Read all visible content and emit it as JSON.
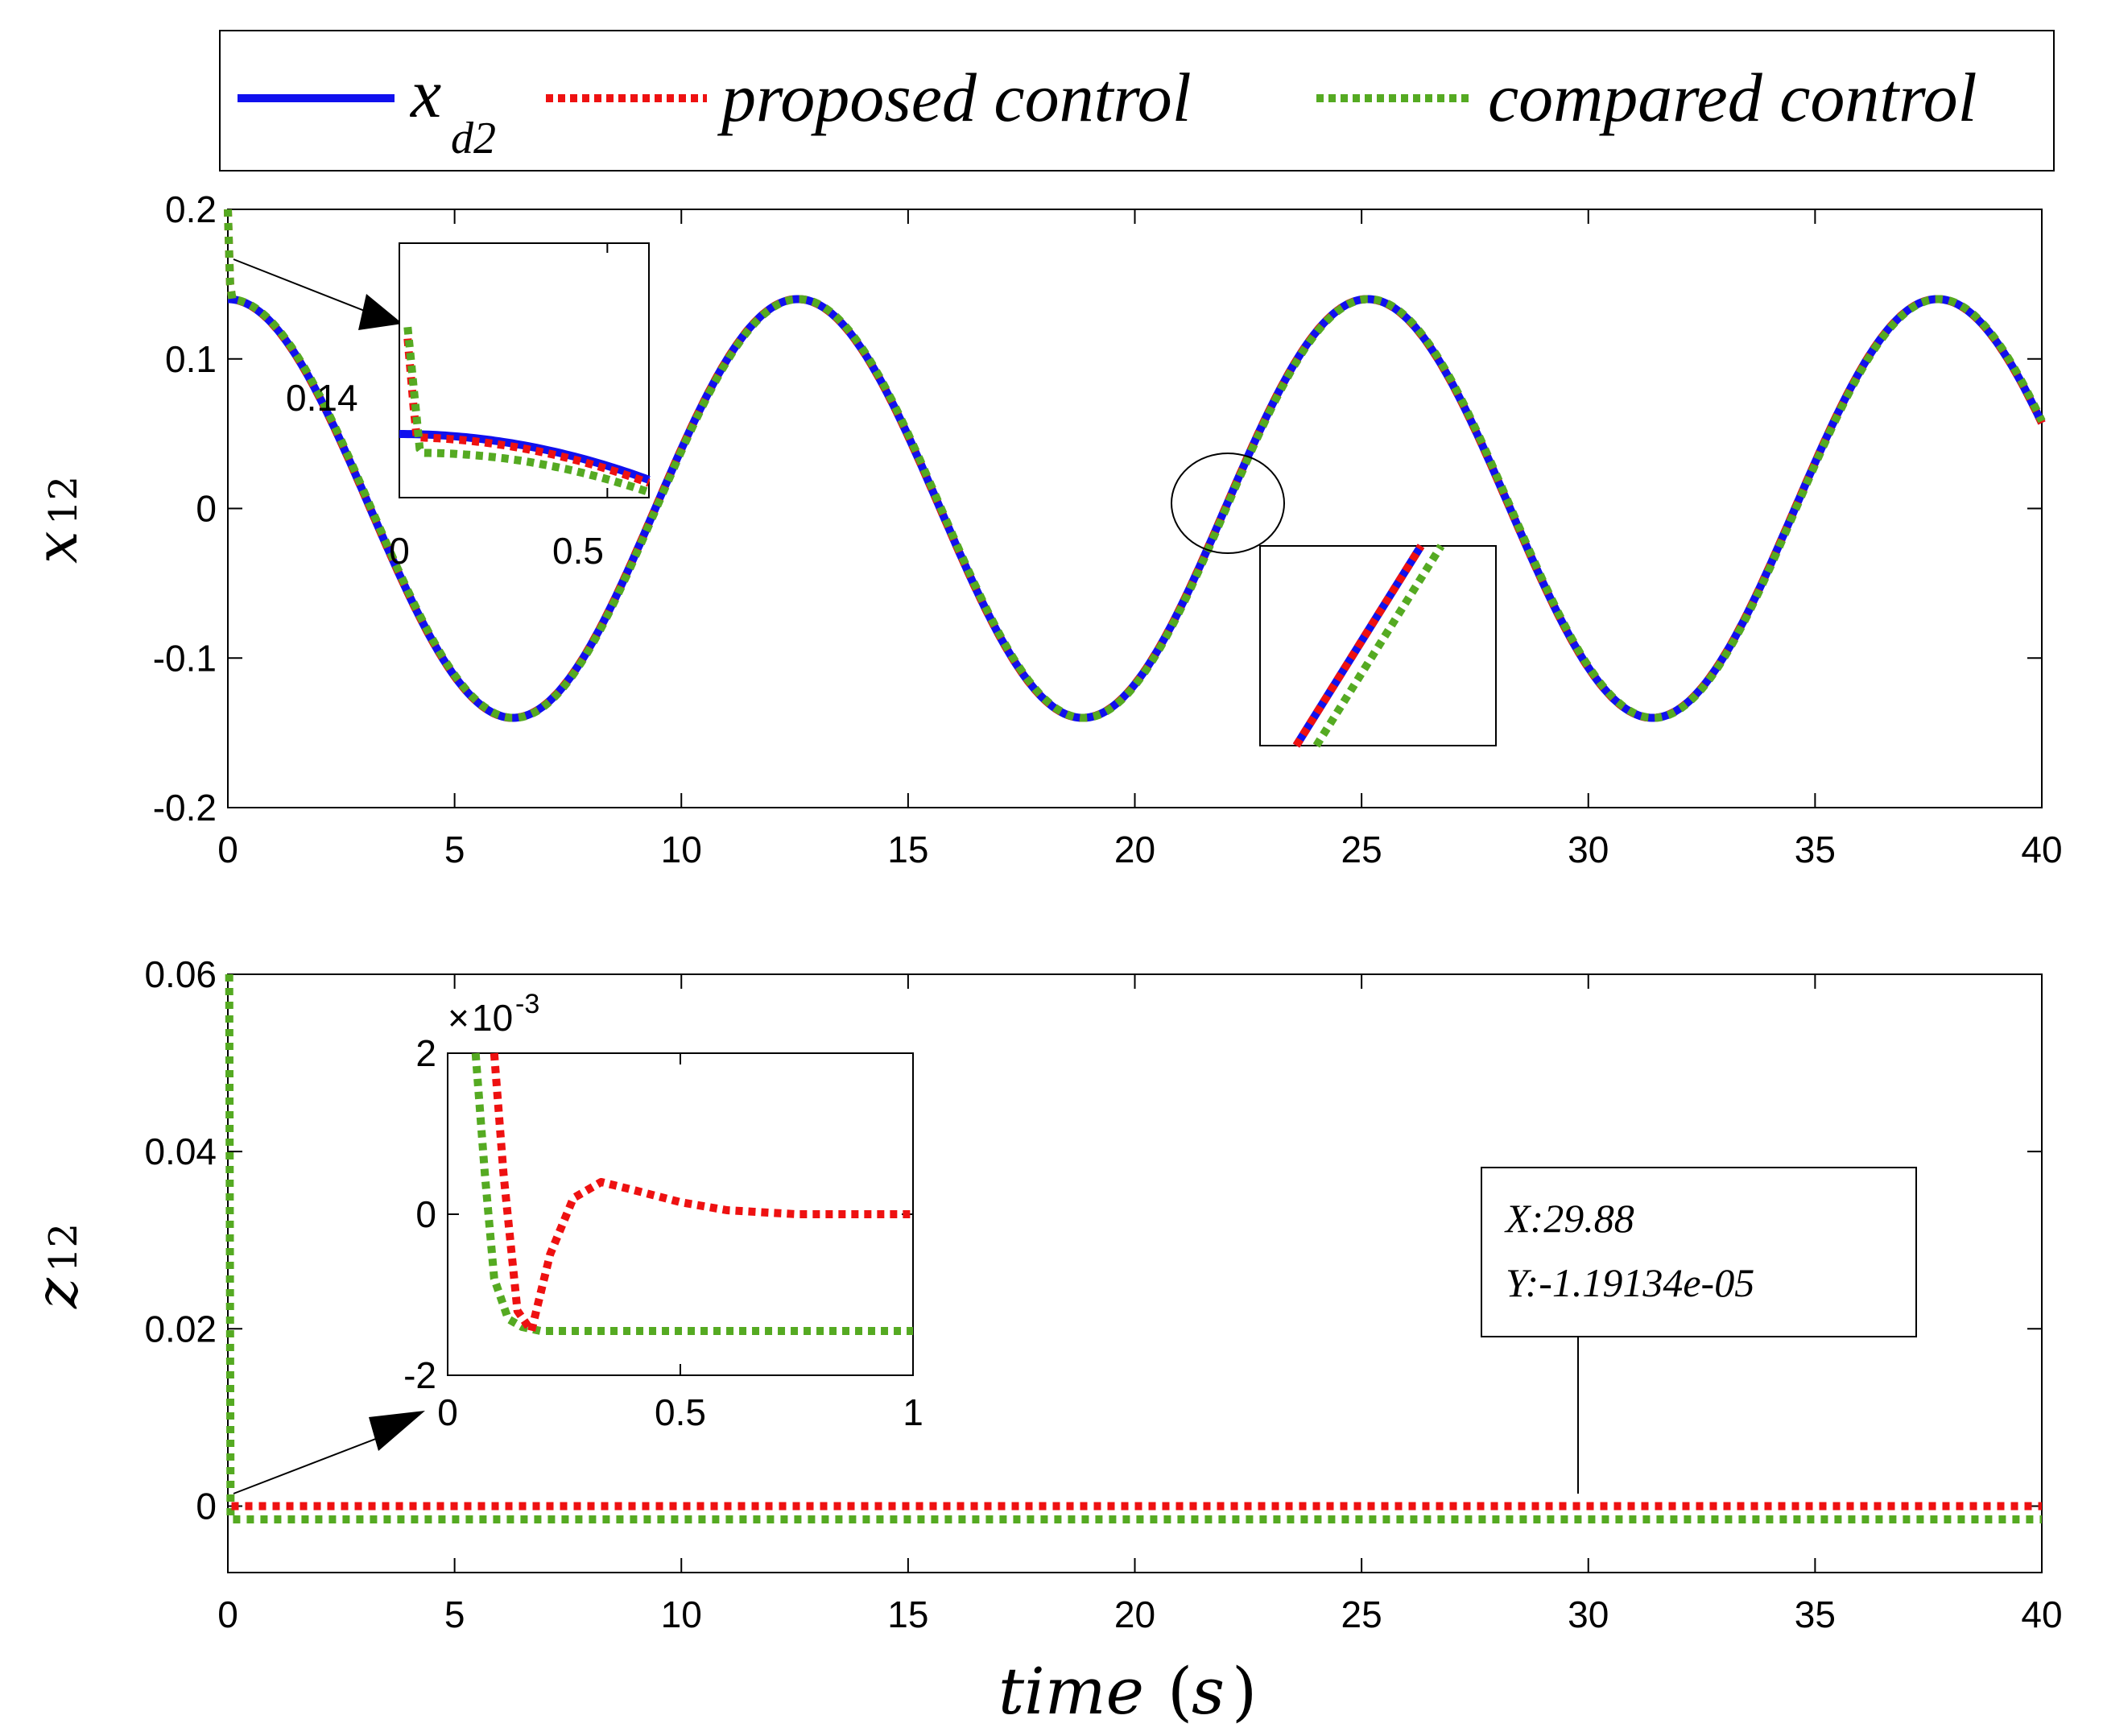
{
  "colors": {
    "xd2": "#1010ee",
    "proposed": "#ee1111",
    "compared": "#55aa22",
    "axis": "#000000"
  },
  "legend": {
    "items": [
      {
        "label": "x",
        "subscript": "d2",
        "style": "solid",
        "color_key": "xd2"
      },
      {
        "label": "proposed control",
        "subscript": "",
        "style": "dotted",
        "color_key": "proposed"
      },
      {
        "label": "compared control",
        "subscript": "",
        "style": "dotted",
        "color_key": "compared"
      }
    ]
  },
  "xlabel": {
    "text": "time",
    "paren_open": "(",
    "unit": "s",
    "paren_close": ")"
  },
  "chart_data": [
    {
      "type": "line",
      "title": "",
      "ylabel": "x",
      "ylabel_sub": "12",
      "xlim": [
        0,
        40
      ],
      "ylim": [
        -0.2,
        0.2
      ],
      "xticks": [
        0,
        5,
        10,
        15,
        20,
        25,
        30,
        35,
        40
      ],
      "xtick_labels": [
        "0",
        "5",
        "10",
        "15",
        "20",
        "25",
        "30",
        "35",
        "40"
      ],
      "yticks": [
        -0.2,
        -0.1,
        0,
        0.1,
        0.2
      ],
      "ytick_labels": [
        "-0.2",
        "-0.1",
        "0",
        "0.1",
        "0.2"
      ],
      "series": [
        {
          "name": "x_d2",
          "model": "0.14*cos(0.5*t)",
          "amplitude": 0.14,
          "omega": 0.5
        },
        {
          "name": "proposed control",
          "model": "tracks x_d2",
          "initial": 0.2
        },
        {
          "name": "compared control",
          "model": "tracks x_d2 with small lag",
          "initial": 0.2
        }
      ],
      "inset": {
        "xlim": [
          0,
          0.6
        ],
        "ylim": [
          0.12,
          0.2
        ],
        "xticks": [
          0,
          0.5
        ],
        "xtick_labels": [
          "0",
          "0.5"
        ],
        "ytick_label": "0.14",
        "ytick_value": 0.14
      },
      "zoom_inset_note": "zoom near t = 22"
    },
    {
      "type": "line",
      "title": "",
      "ylabel": "z",
      "ylabel_sub": "12",
      "xlim": [
        0,
        40
      ],
      "ylim": [
        -0.0075,
        0.06
      ],
      "xticks": [
        0,
        5,
        10,
        15,
        20,
        25,
        30,
        35,
        40
      ],
      "xtick_labels": [
        "0",
        "5",
        "10",
        "15",
        "20",
        "25",
        "30",
        "35",
        "40"
      ],
      "yticks": [
        0,
        0.02,
        0.04,
        0.06
      ],
      "ytick_labels": [
        "0",
        "0.02",
        "0.04",
        "0.06"
      ],
      "series": [
        {
          "name": "proposed control",
          "steady_value": 0.0
        },
        {
          "name": "compared control",
          "steady_value": -0.0015,
          "initial": 0.06
        }
      ],
      "inset": {
        "xlim": [
          0,
          1
        ],
        "ylim": [
          -2,
          2
        ],
        "xticks": [
          0,
          0.5,
          1
        ],
        "xtick_labels": [
          "0",
          "0.5",
          "1"
        ],
        "yticks": [
          -2,
          0,
          2
        ],
        "ytick_labels": [
          "-2",
          "0",
          "2"
        ],
        "scale_times": "×",
        "scale_base": "10",
        "scale_exp": "-3",
        "proposed": {
          "t": [
            0.1,
            0.12,
            0.15,
            0.18,
            0.22,
            0.27,
            0.33,
            0.4,
            0.5,
            0.6,
            0.75,
            1.0
          ],
          "v": [
            2.0,
            0.5,
            -1.2,
            -1.45,
            -0.5,
            0.2,
            0.4,
            0.3,
            0.15,
            0.05,
            0.0,
            0.0
          ]
        },
        "compared": {
          "t": [
            0.06,
            0.08,
            0.1,
            0.13,
            0.16,
            0.2,
            0.3,
            0.5,
            1.0
          ],
          "v": [
            2.0,
            0.5,
            -0.8,
            -1.3,
            -1.4,
            -1.45,
            -1.45,
            -1.45,
            -1.45
          ]
        }
      },
      "datatip": {
        "x": 29.88,
        "x_text": "X:29.88",
        "y_text": "Y:-1.19134e-05"
      }
    }
  ]
}
